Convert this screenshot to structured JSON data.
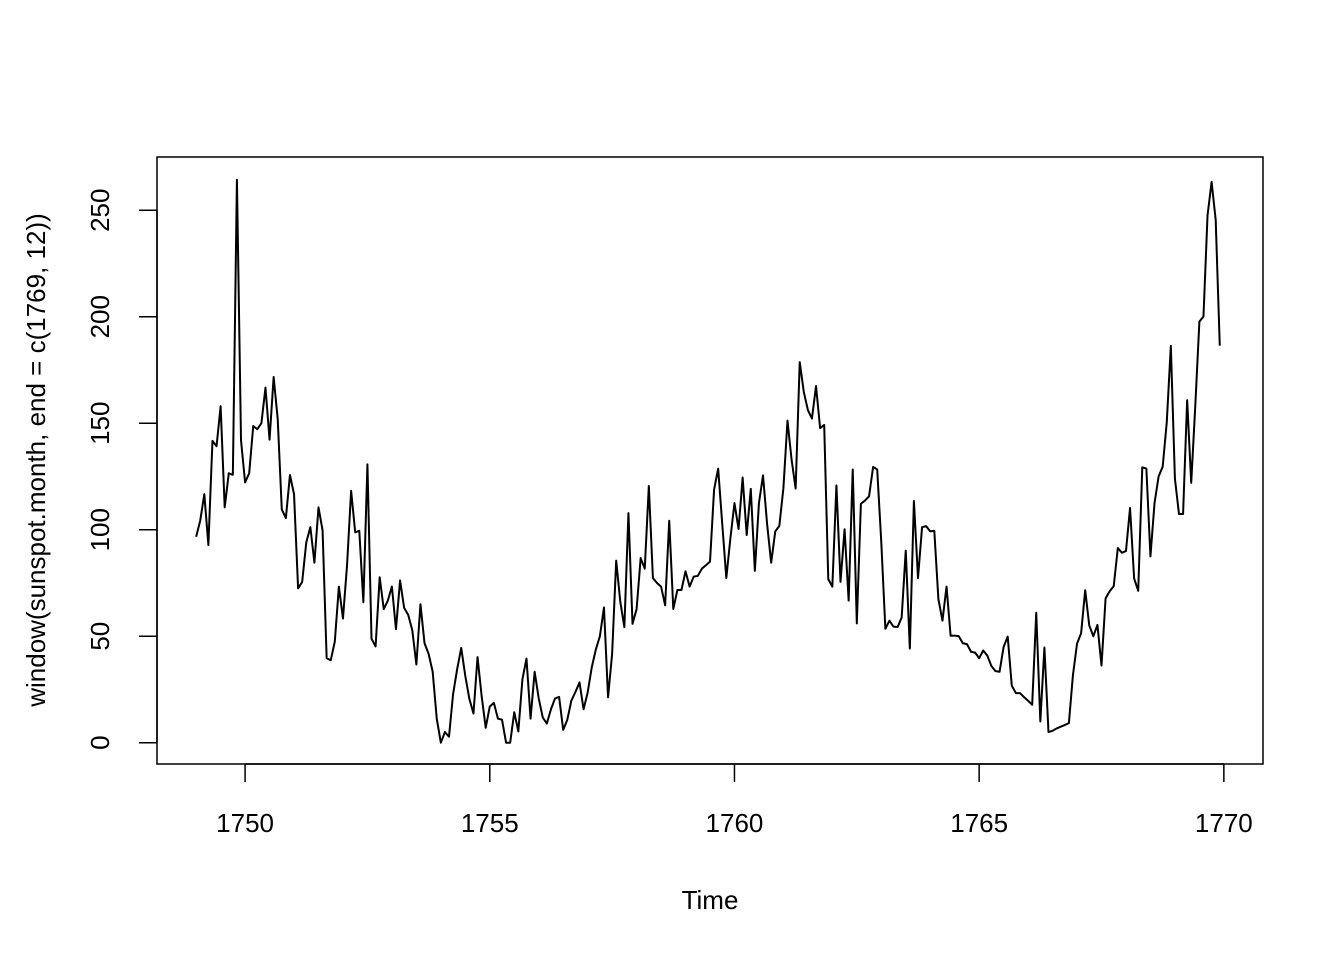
{
  "chart_data": {
    "type": "line",
    "title": "",
    "xlabel": "Time",
    "ylabel": "window(sunspot.month, end = c(1769, 12))",
    "xlim": [
      1748.2,
      1770.8
    ],
    "ylim": [
      -10,
      275
    ],
    "x_ticks": [
      1750,
      1755,
      1760,
      1765,
      1770
    ],
    "x_tick_labels": [
      "1750",
      "1755",
      "1760",
      "1765",
      "1770"
    ],
    "y_ticks": [
      0,
      50,
      100,
      150,
      200,
      250
    ],
    "y_tick_labels": [
      "0",
      "50",
      "100",
      "150",
      "200",
      "250"
    ],
    "grid": false,
    "line_color": "#000000",
    "series": [
      {
        "x_start": 1749.0,
        "x_step": 0.0833333,
        "values": [
          96.7,
          104.3,
          116.7,
          92.8,
          141.7,
          139.2,
          158.0,
          110.5,
          126.5,
          125.8,
          264.3,
          142.0,
          122.2,
          126.5,
          148.7,
          147.2,
          150.0,
          166.7,
          142.3,
          171.7,
          152.0,
          109.5,
          105.5,
          125.7,
          116.7,
          72.5,
          75.5,
          94.0,
          101.2,
          84.5,
          110.5,
          99.7,
          39.7,
          38.7,
          47.5,
          73.3,
          58.3,
          83.3,
          118.3,
          98.8,
          99.5,
          66.0,
          130.7,
          48.8,
          45.2,
          77.7,
          62.7,
          66.7,
          73.3,
          53.3,
          76.2,
          63.3,
          60.0,
          52.8,
          36.7,
          65.0,
          46.7,
          41.7,
          33.3,
          11.2,
          0.0,
          5.0,
          2.8,
          22.8,
          34.5,
          44.5,
          31.3,
          20.5,
          13.7,
          40.2,
          22.0,
          7.0,
          17.0,
          18.7,
          11.3,
          10.8,
          0.0,
          0.0,
          14.3,
          5.3,
          29.7,
          39.5,
          11.3,
          33.3,
          20.8,
          11.8,
          9.0,
          15.7,
          20.8,
          21.5,
          6.0,
          10.7,
          19.7,
          23.8,
          28.3,
          15.7,
          23.5,
          35.3,
          43.7,
          50.0,
          63.5,
          21.3,
          41.7,
          85.5,
          66.2,
          54.2,
          107.8,
          55.8,
          62.7,
          86.7,
          81.7,
          120.5,
          77.3,
          75.0,
          73.3,
          64.5,
          104.2,
          62.8,
          71.7,
          71.7,
          80.5,
          73.3,
          78.0,
          78.3,
          81.7,
          83.3,
          85.0,
          118.8,
          128.7,
          102.8,
          77.3,
          96.0,
          112.5,
          100.3,
          124.5,
          97.5,
          119.2,
          80.7,
          112.5,
          125.5,
          102.7,
          84.5,
          99.2,
          101.8,
          119.5,
          151.2,
          133.0,
          119.3,
          178.7,
          164.7,
          156.2,
          152.2,
          167.5,
          147.7,
          149.2,
          76.8,
          73.3,
          120.8,
          75.5,
          100.2,
          66.7,
          128.3,
          56.0,
          112.2,
          113.7,
          115.7,
          129.5,
          128.3,
          94.2,
          53.5,
          57.3,
          54.5,
          54.3,
          58.8,
          90.2,
          44.2,
          113.5,
          77.3,
          101.2,
          101.7,
          99.2,
          99.5,
          67.5,
          57.3,
          73.3,
          50.2,
          50.3,
          50.0,
          46.7,
          46.3,
          42.7,
          42.3,
          39.7,
          43.3,
          40.9,
          36.0,
          33.6,
          33.3,
          45.0,
          49.8,
          26.8,
          23.3,
          23.3,
          21.4,
          19.7,
          17.8,
          61.0,
          10.0,
          44.7,
          5.0,
          5.6,
          6.7,
          7.5,
          8.3,
          9.2,
          31.8,
          46.5,
          51.4,
          71.6,
          55.0,
          50.0,
          55.3,
          36.2,
          67.7,
          71.1,
          73.5,
          91.4,
          89.2,
          90.0,
          110.2,
          77.1,
          71.3,
          129.3,
          128.7,
          87.5,
          112.5,
          125.0,
          129.6,
          150.4,
          186.3,
          124.0,
          107.4,
          107.4,
          160.8,
          122.0,
          158.3,
          197.7,
          200.1,
          247.6,
          263.3,
          245.5,
          186.4
        ]
      }
    ]
  }
}
